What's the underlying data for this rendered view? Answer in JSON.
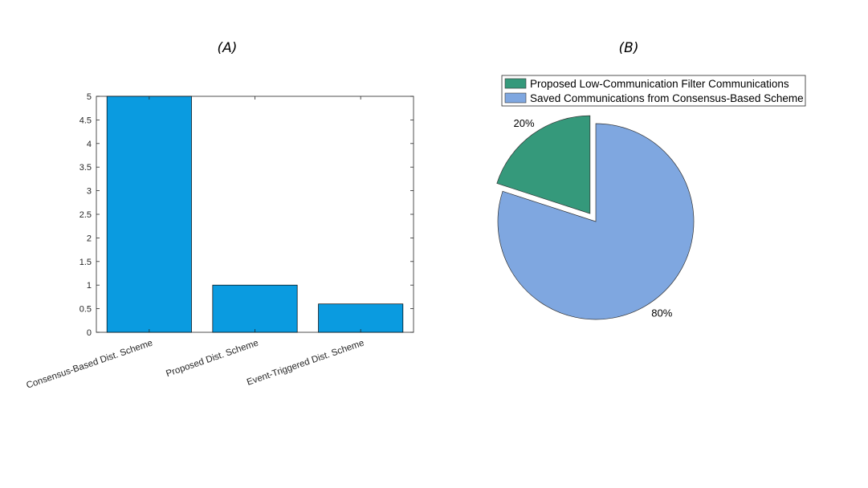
{
  "panels": {
    "a_label": "(A)",
    "b_label": "(B)"
  },
  "chart_data": [
    {
      "type": "bar",
      "categories": [
        "Consensus-Based Dist. Scheme",
        "Proposed Dist. Scheme",
        "Event-Triggered Dist. Scheme"
      ],
      "values": [
        5,
        1,
        0.6
      ],
      "ylim": [
        0,
        5
      ],
      "yticks": [
        "0",
        "0.5",
        "1",
        "1.5",
        "2",
        "2.5",
        "3",
        "3.5",
        "4",
        "4.5",
        "5"
      ],
      "color": "#0a9be0",
      "grid": false
    },
    {
      "type": "pie",
      "labels": [
        "Proposed Low-Communication Filter Communications",
        "Saved Communications from Consensus-Based Scheme"
      ],
      "values": [
        20,
        80
      ],
      "percent_labels": [
        "20%",
        "80%"
      ],
      "colors": [
        "#35997b",
        "#7fa7e0"
      ],
      "exploded": [
        true,
        false
      ],
      "legend": "top"
    }
  ]
}
